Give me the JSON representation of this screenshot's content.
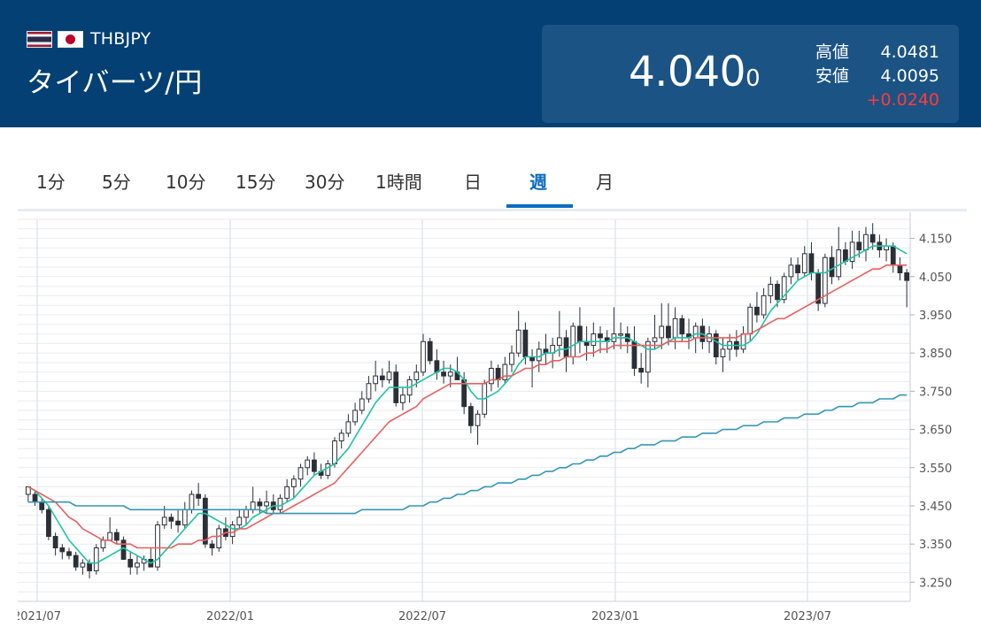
{
  "header": {
    "pair_code": "THBJPY",
    "pair_name": "タイバーツ/円",
    "flags": [
      "thailand-flag",
      "japan-flag"
    ],
    "price_main": "4.040",
    "price_last_digit": "0",
    "high_label": "高値",
    "high_value": "4.0481",
    "low_label": "安値",
    "low_value": "4.0095",
    "change": "+0.0240",
    "colors": {
      "header_bg": "#044073",
      "quote_bg": "#1b5384",
      "change": "#ff3b3b"
    }
  },
  "tabs": [
    {
      "label": "1分"
    },
    {
      "label": "5分"
    },
    {
      "label": "10分"
    },
    {
      "label": "15分"
    },
    {
      "label": "30分"
    },
    {
      "label": "1時間"
    },
    {
      "label": "日"
    },
    {
      "label": "週",
      "active": true
    },
    {
      "label": "月"
    }
  ],
  "chart_data": {
    "type": "candlestick",
    "interval": "weekly",
    "ylim": [
      3.2,
      4.2
    ],
    "yticks": [
      "4.150",
      "4.050",
      "3.950",
      "3.850",
      "3.750",
      "3.650",
      "3.550",
      "3.450",
      "3.350",
      "3.250"
    ],
    "xticks": [
      "2021/07",
      "2022/01",
      "2022/07",
      "2023/01",
      "2023/07"
    ],
    "candles": [
      [
        3.48,
        3.5,
        3.46,
        3.5
      ],
      [
        3.48,
        3.49,
        3.45,
        3.46
      ],
      [
        3.46,
        3.47,
        3.43,
        3.44
      ],
      [
        3.44,
        3.45,
        3.36,
        3.37
      ],
      [
        3.37,
        3.38,
        3.32,
        3.34
      ],
      [
        3.34,
        3.35,
        3.31,
        3.33
      ],
      [
        3.33,
        3.34,
        3.31,
        3.32
      ],
      [
        3.32,
        3.33,
        3.28,
        3.29
      ],
      [
        3.29,
        3.31,
        3.27,
        3.3
      ],
      [
        3.3,
        3.31,
        3.26,
        3.28
      ],
      [
        3.28,
        3.35,
        3.27,
        3.34
      ],
      [
        3.34,
        3.37,
        3.33,
        3.36
      ],
      [
        3.36,
        3.42,
        3.36,
        3.38
      ],
      [
        3.38,
        3.39,
        3.35,
        3.36
      ],
      [
        3.36,
        3.37,
        3.32,
        3.31
      ],
      [
        3.31,
        3.33,
        3.27,
        3.29
      ],
      [
        3.29,
        3.32,
        3.27,
        3.3
      ],
      [
        3.3,
        3.32,
        3.28,
        3.31
      ],
      [
        3.31,
        3.34,
        3.29,
        3.29
      ],
      [
        3.29,
        3.41,
        3.28,
        3.4
      ],
      [
        3.4,
        3.45,
        3.39,
        3.42
      ],
      [
        3.42,
        3.43,
        3.39,
        3.41
      ],
      [
        3.41,
        3.44,
        3.38,
        3.4
      ],
      [
        3.4,
        3.46,
        3.39,
        3.44
      ],
      [
        3.44,
        3.49,
        3.43,
        3.48
      ],
      [
        3.48,
        3.51,
        3.45,
        3.47
      ],
      [
        3.47,
        3.48,
        3.34,
        3.35
      ],
      [
        3.35,
        3.36,
        3.32,
        3.34
      ],
      [
        3.34,
        3.4,
        3.33,
        3.39
      ],
      [
        3.39,
        3.42,
        3.36,
        3.37
      ],
      [
        3.37,
        3.41,
        3.35,
        3.4
      ],
      [
        3.4,
        3.44,
        3.39,
        3.42
      ],
      [
        3.42,
        3.45,
        3.4,
        3.44
      ],
      [
        3.44,
        3.5,
        3.43,
        3.46
      ],
      [
        3.46,
        3.47,
        3.43,
        3.45
      ],
      [
        3.45,
        3.49,
        3.43,
        3.46
      ],
      [
        3.46,
        3.48,
        3.43,
        3.44
      ],
      [
        3.44,
        3.48,
        3.43,
        3.47
      ],
      [
        3.47,
        3.52,
        3.46,
        3.5
      ],
      [
        3.5,
        3.53,
        3.47,
        3.52
      ],
      [
        3.52,
        3.56,
        3.5,
        3.55
      ],
      [
        3.55,
        3.58,
        3.53,
        3.57
      ],
      [
        3.57,
        3.59,
        3.53,
        3.54
      ],
      [
        3.54,
        3.56,
        3.52,
        3.53
      ],
      [
        3.53,
        3.57,
        3.52,
        3.56
      ],
      [
        3.56,
        3.63,
        3.55,
        3.62
      ],
      [
        3.62,
        3.65,
        3.6,
        3.64
      ],
      [
        3.64,
        3.69,
        3.63,
        3.67
      ],
      [
        3.67,
        3.72,
        3.66,
        3.7
      ],
      [
        3.7,
        3.75,
        3.69,
        3.73
      ],
      [
        3.73,
        3.79,
        3.72,
        3.77
      ],
      [
        3.77,
        3.83,
        3.75,
        3.79
      ],
      [
        3.79,
        3.81,
        3.76,
        3.78
      ],
      [
        3.78,
        3.83,
        3.77,
        3.8
      ],
      [
        3.8,
        3.82,
        3.71,
        3.72
      ],
      [
        3.72,
        3.76,
        3.7,
        3.74
      ],
      [
        3.74,
        3.79,
        3.72,
        3.78
      ],
      [
        3.78,
        3.82,
        3.76,
        3.8
      ],
      [
        3.8,
        3.9,
        3.79,
        3.88
      ],
      [
        3.88,
        3.89,
        3.82,
        3.83
      ],
      [
        3.83,
        3.86,
        3.78,
        3.8
      ],
      [
        3.8,
        3.83,
        3.77,
        3.79
      ],
      [
        3.79,
        3.82,
        3.76,
        3.8
      ],
      [
        3.8,
        3.84,
        3.78,
        3.78
      ],
      [
        3.78,
        3.8,
        3.69,
        3.71
      ],
      [
        3.71,
        3.72,
        3.64,
        3.66
      ],
      [
        3.66,
        3.7,
        3.61,
        3.69
      ],
      [
        3.69,
        3.78,
        3.68,
        3.77
      ],
      [
        3.77,
        3.83,
        3.75,
        3.81
      ],
      [
        3.81,
        3.82,
        3.76,
        3.78
      ],
      [
        3.78,
        3.84,
        3.77,
        3.82
      ],
      [
        3.82,
        3.87,
        3.8,
        3.85
      ],
      [
        3.85,
        3.96,
        3.84,
        3.91
      ],
      [
        3.91,
        3.93,
        3.82,
        3.84
      ],
      [
        3.84,
        3.86,
        3.76,
        3.83
      ],
      [
        3.83,
        3.88,
        3.8,
        3.86
      ],
      [
        3.86,
        3.9,
        3.82,
        3.85
      ],
      [
        3.85,
        3.89,
        3.81,
        3.87
      ],
      [
        3.87,
        3.96,
        3.84,
        3.89
      ],
      [
        3.89,
        3.91,
        3.8,
        3.84
      ],
      [
        3.84,
        3.93,
        3.82,
        3.92
      ],
      [
        3.92,
        3.97,
        3.85,
        3.88
      ],
      [
        3.88,
        3.92,
        3.83,
        3.87
      ],
      [
        3.87,
        3.93,
        3.84,
        3.9
      ],
      [
        3.9,
        3.92,
        3.85,
        3.89
      ],
      [
        3.89,
        3.91,
        3.85,
        3.88
      ],
      [
        3.88,
        3.97,
        3.86,
        3.9
      ],
      [
        3.9,
        3.93,
        3.86,
        3.9
      ],
      [
        3.9,
        3.92,
        3.85,
        3.88
      ],
      [
        3.88,
        3.92,
        3.79,
        3.81
      ],
      [
        3.81,
        3.85,
        3.77,
        3.8
      ],
      [
        3.8,
        3.89,
        3.76,
        3.88
      ],
      [
        3.88,
        3.95,
        3.86,
        3.89
      ],
      [
        3.89,
        3.98,
        3.86,
        3.92
      ],
      [
        3.92,
        3.98,
        3.87,
        3.89
      ],
      [
        3.89,
        3.97,
        3.86,
        3.94
      ],
      [
        3.94,
        3.95,
        3.88,
        3.9
      ],
      [
        3.9,
        3.94,
        3.86,
        3.89
      ],
      [
        3.89,
        3.93,
        3.85,
        3.92
      ],
      [
        3.92,
        3.94,
        3.86,
        3.88
      ],
      [
        3.88,
        3.92,
        3.85,
        3.9
      ],
      [
        3.9,
        3.91,
        3.82,
        3.84
      ],
      [
        3.84,
        3.89,
        3.8,
        3.86
      ],
      [
        3.86,
        3.9,
        3.83,
        3.88
      ],
      [
        3.88,
        3.91,
        3.84,
        3.86
      ],
      [
        3.86,
        3.92,
        3.85,
        3.9
      ],
      [
        3.9,
        3.98,
        3.88,
        3.97
      ],
      [
        3.97,
        4.01,
        3.93,
        3.95
      ],
      [
        3.95,
        4.02,
        3.94,
        4.0
      ],
      [
        4.0,
        4.05,
        3.98,
        4.03
      ],
      [
        4.03,
        4.04,
        3.97,
        3.99
      ],
      [
        3.99,
        4.06,
        3.98,
        4.05
      ],
      [
        4.05,
        4.1,
        4.03,
        4.08
      ],
      [
        4.08,
        4.1,
        4.04,
        4.06
      ],
      [
        4.06,
        4.13,
        4.05,
        4.11
      ],
      [
        4.11,
        4.14,
        4.04,
        4.06
      ],
      [
        4.06,
        4.07,
        3.96,
        3.98
      ],
      [
        3.98,
        4.11,
        3.97,
        4.1
      ],
      [
        4.1,
        4.13,
        4.03,
        4.05
      ],
      [
        4.05,
        4.18,
        4.04,
        4.12
      ],
      [
        4.12,
        4.14,
        4.08,
        4.09
      ],
      [
        4.09,
        4.17,
        4.07,
        4.14
      ],
      [
        4.14,
        4.17,
        4.1,
        4.12
      ],
      [
        4.12,
        4.18,
        4.09,
        4.16
      ],
      [
        4.16,
        4.19,
        4.12,
        4.14
      ],
      [
        4.14,
        4.16,
        4.1,
        4.12
      ],
      [
        4.12,
        4.15,
        4.09,
        4.13
      ],
      [
        4.13,
        4.14,
        4.06,
        4.08
      ],
      [
        4.08,
        4.1,
        4.04,
        4.06
      ],
      [
        4.06,
        4.07,
        3.97,
        4.04
      ]
    ],
    "moving_averages": [
      {
        "color": "#1fc3a6",
        "values": [
          3.5,
          3.49,
          3.47,
          3.45,
          3.42,
          3.39,
          3.36,
          3.34,
          3.32,
          3.3,
          3.3,
          3.31,
          3.32,
          3.33,
          3.34,
          3.33,
          3.32,
          3.31,
          3.3,
          3.31,
          3.33,
          3.35,
          3.37,
          3.39,
          3.41,
          3.43,
          3.43,
          3.42,
          3.41,
          3.4,
          3.39,
          3.39,
          3.4,
          3.42,
          3.43,
          3.44,
          3.45,
          3.45,
          3.46,
          3.47,
          3.49,
          3.51,
          3.53,
          3.54,
          3.55,
          3.56,
          3.58,
          3.6,
          3.63,
          3.66,
          3.69,
          3.72,
          3.74,
          3.76,
          3.76,
          3.76,
          3.76,
          3.77,
          3.78,
          3.79,
          3.8,
          3.81,
          3.81,
          3.8,
          3.78,
          3.75,
          3.73,
          3.73,
          3.74,
          3.75,
          3.77,
          3.79,
          3.82,
          3.84,
          3.84,
          3.84,
          3.85,
          3.85,
          3.86,
          3.86,
          3.87,
          3.88,
          3.88,
          3.88,
          3.88,
          3.88,
          3.89,
          3.89,
          3.89,
          3.88,
          3.87,
          3.86,
          3.86,
          3.87,
          3.88,
          3.89,
          3.89,
          3.89,
          3.9,
          3.9,
          3.89,
          3.88,
          3.87,
          3.87,
          3.87,
          3.87,
          3.88,
          3.9,
          3.93,
          3.96,
          3.98,
          4.0,
          4.02,
          4.04,
          4.05,
          4.06,
          4.06,
          4.06,
          4.07,
          4.08,
          4.09,
          4.1,
          4.11,
          4.12,
          4.13,
          4.13,
          4.13,
          4.13,
          4.12,
          4.11
        ]
      },
      {
        "color": "#e96060",
        "values": [
          3.5,
          3.49,
          3.48,
          3.47,
          3.46,
          3.44,
          3.42,
          3.41,
          3.39,
          3.38,
          3.37,
          3.36,
          3.36,
          3.35,
          3.35,
          3.35,
          3.34,
          3.34,
          3.34,
          3.34,
          3.34,
          3.34,
          3.35,
          3.35,
          3.35,
          3.36,
          3.36,
          3.37,
          3.37,
          3.38,
          3.38,
          3.39,
          3.39,
          3.4,
          3.41,
          3.42,
          3.43,
          3.43,
          3.44,
          3.45,
          3.46,
          3.47,
          3.48,
          3.49,
          3.5,
          3.51,
          3.53,
          3.55,
          3.57,
          3.59,
          3.61,
          3.63,
          3.65,
          3.67,
          3.68,
          3.69,
          3.7,
          3.71,
          3.73,
          3.74,
          3.75,
          3.76,
          3.77,
          3.77,
          3.77,
          3.77,
          3.77,
          3.77,
          3.78,
          3.78,
          3.79,
          3.79,
          3.8,
          3.81,
          3.81,
          3.82,
          3.82,
          3.83,
          3.83,
          3.84,
          3.84,
          3.84,
          3.85,
          3.85,
          3.86,
          3.86,
          3.87,
          3.87,
          3.87,
          3.87,
          3.87,
          3.87,
          3.87,
          3.87,
          3.88,
          3.88,
          3.88,
          3.88,
          3.89,
          3.89,
          3.89,
          3.89,
          3.89,
          3.89,
          3.89,
          3.9,
          3.9,
          3.91,
          3.92,
          3.93,
          3.94,
          3.94,
          3.95,
          3.96,
          3.97,
          3.98,
          3.99,
          4.0,
          4.01,
          4.02,
          4.03,
          4.04,
          4.05,
          4.06,
          4.07,
          4.07,
          4.08,
          4.08,
          4.08,
          4.08
        ]
      },
      {
        "color": "#3596b5",
        "values": [
          3.46,
          3.46,
          3.46,
          3.46,
          3.46,
          3.46,
          3.46,
          3.45,
          3.45,
          3.45,
          3.45,
          3.45,
          3.45,
          3.45,
          3.45,
          3.44,
          3.44,
          3.44,
          3.44,
          3.44,
          3.44,
          3.44,
          3.44,
          3.44,
          3.44,
          3.44,
          3.44,
          3.44,
          3.44,
          3.44,
          3.44,
          3.44,
          3.44,
          3.44,
          3.44,
          3.43,
          3.43,
          3.43,
          3.43,
          3.43,
          3.43,
          3.43,
          3.43,
          3.43,
          3.43,
          3.43,
          3.43,
          3.43,
          3.43,
          3.44,
          3.44,
          3.44,
          3.44,
          3.44,
          3.44,
          3.44,
          3.45,
          3.45,
          3.45,
          3.46,
          3.46,
          3.47,
          3.47,
          3.48,
          3.48,
          3.49,
          3.49,
          3.5,
          3.5,
          3.51,
          3.51,
          3.51,
          3.52,
          3.52,
          3.53,
          3.53,
          3.54,
          3.54,
          3.55,
          3.55,
          3.56,
          3.56,
          3.57,
          3.57,
          3.58,
          3.58,
          3.59,
          3.59,
          3.6,
          3.6,
          3.61,
          3.61,
          3.61,
          3.62,
          3.62,
          3.62,
          3.63,
          3.63,
          3.63,
          3.64,
          3.64,
          3.64,
          3.65,
          3.65,
          3.65,
          3.66,
          3.66,
          3.66,
          3.67,
          3.67,
          3.67,
          3.68,
          3.68,
          3.68,
          3.69,
          3.69,
          3.69,
          3.7,
          3.7,
          3.71,
          3.71,
          3.71,
          3.72,
          3.72,
          3.72,
          3.73,
          3.73,
          3.73,
          3.74,
          3.74
        ]
      }
    ]
  }
}
